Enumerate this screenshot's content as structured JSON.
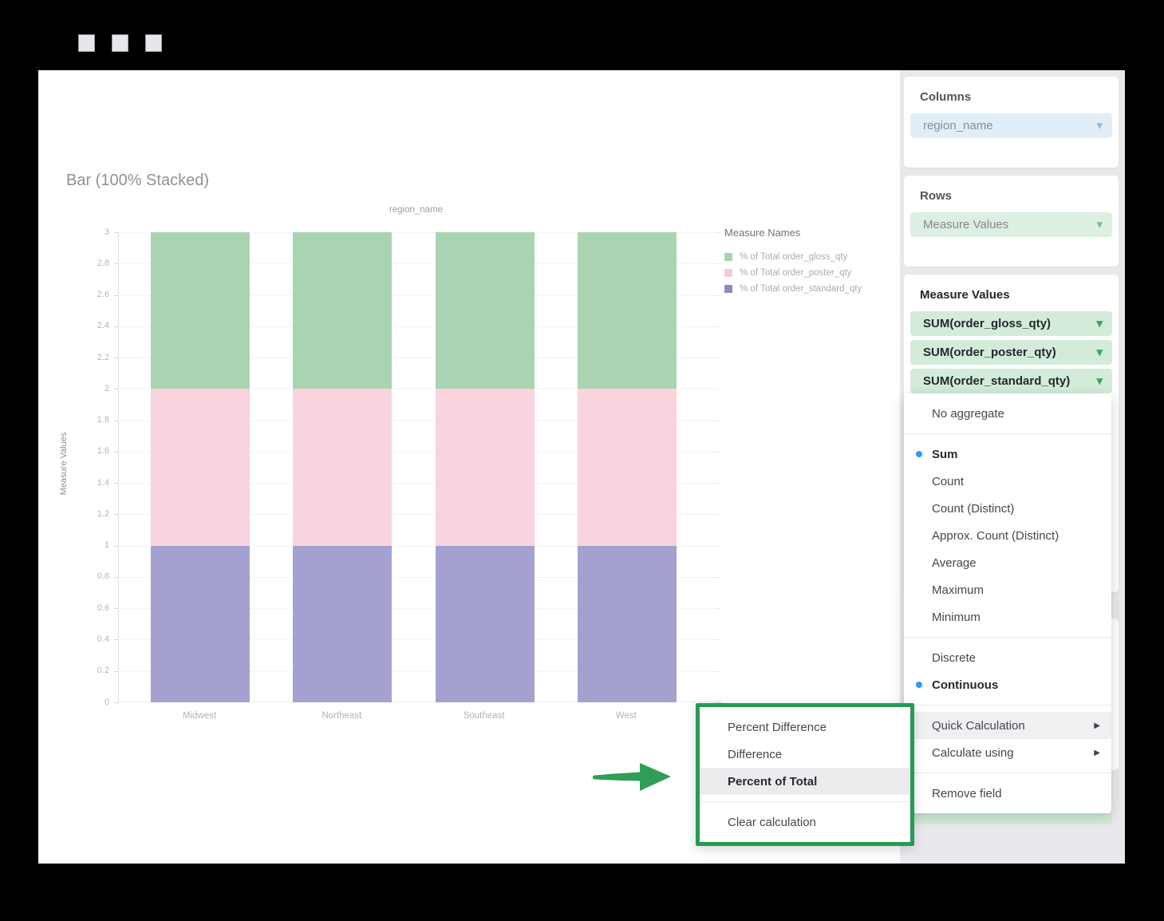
{
  "window": {
    "control_count": 3
  },
  "chart_data": {
    "type": "bar",
    "stacked": "100%",
    "title": "Bar (100% Stacked)",
    "xlabel": "region_name",
    "ylabel": "Measure Values",
    "categories": [
      "Midwest",
      "Northeast",
      "Southeast",
      "West"
    ],
    "series": [
      {
        "name": "% of Total order_standard_qty",
        "values": [
          1,
          1,
          1,
          1
        ],
        "bar_color": "#a4a1d1",
        "legend_color": "#8e8bc0"
      },
      {
        "name": "% of Total order_poster_qty",
        "values": [
          1,
          1,
          1,
          1
        ],
        "bar_color": "#f9d3de",
        "legend_color": "#f5cbd7"
      },
      {
        "name": "% of Total order_gloss_qty",
        "values": [
          1,
          1,
          1,
          1
        ],
        "bar_color": "#a9d4b2",
        "legend_color": "#a7d3af"
      }
    ],
    "ylim": [
      0,
      3
    ],
    "ytick_step": 0.2,
    "grid": true,
    "legend": {
      "title": "Measure Names",
      "position": "right"
    }
  },
  "sidebar": {
    "columns_card": {
      "header": "Columns",
      "pill": {
        "label": "region_name"
      }
    },
    "rows_card": {
      "header": "Rows",
      "pill": {
        "label": "Measure Values"
      }
    },
    "measure_values_card": {
      "header": "Measure Values",
      "pills": [
        "SUM(order_gloss_qty)",
        "SUM(order_poster_qty)",
        "SUM(order_standard_qty)"
      ]
    }
  },
  "aggregate_menu": {
    "sections": [
      {
        "items": [
          {
            "label": "No aggregate"
          }
        ]
      },
      {
        "items": [
          {
            "label": "Sum",
            "bold": true,
            "dot": true
          },
          {
            "label": "Count"
          },
          {
            "label": "Count (Distinct)"
          },
          {
            "label": "Approx. Count (Distinct)"
          },
          {
            "label": "Average"
          },
          {
            "label": "Maximum"
          },
          {
            "label": "Minimum"
          }
        ]
      },
      {
        "items": [
          {
            "label": "Discrete"
          },
          {
            "label": "Continuous",
            "bold": true,
            "dot": true
          }
        ]
      },
      {
        "items": [
          {
            "label": "Quick Calculation",
            "submenu": true,
            "highlighted": true
          },
          {
            "label": "Calculate using",
            "submenu": true
          }
        ]
      },
      {
        "items": [
          {
            "label": "Remove field"
          }
        ]
      }
    ]
  },
  "quick_calc_menu": {
    "sections": [
      {
        "items": [
          {
            "label": "Percent Difference"
          },
          {
            "label": "Difference"
          },
          {
            "label": "Percent of Total",
            "bold": true,
            "highlighted": true
          }
        ]
      },
      {
        "items": [
          {
            "label": "Clear calculation"
          }
        ]
      }
    ]
  },
  "icons": {
    "dropdown": "▾",
    "submenu_arrow": "▶",
    "selected_dot": "●"
  },
  "colors": {
    "annotation_border_green": "#279b54",
    "annotation_arrow_green": "#2f9e56",
    "selected_dot_blue": "#2c9bf4",
    "sidebar_bg": "#e9e9ed",
    "pill_blue_bg": "#e2eef7",
    "pill_rows_bg": "#dcefe1",
    "pill_measure_bg": "#d3ecd9"
  }
}
